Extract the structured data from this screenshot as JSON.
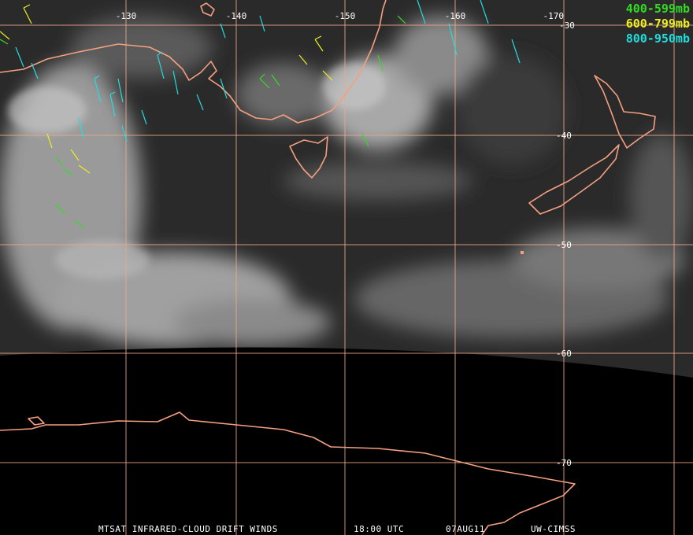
{
  "map": {
    "longitude_labels": [
      "-130",
      "-140",
      "-150",
      "-160",
      "-170"
    ],
    "latitude_labels": [
      "-30",
      "-40",
      "-50",
      "-60",
      "-70"
    ],
    "legend": [
      {
        "label": "400-599mb",
        "color": "#33dd22"
      },
      {
        "label": "600-799mb",
        "color": "#eeee22"
      },
      {
        "label": "800-950mb",
        "color": "#22dddd"
      }
    ],
    "footer": [
      "MTSAT INFRARED-CLOUD DRIFT WINDS",
      "18:00 UTC",
      "07AUG11",
      "UW-CIMSS"
    ]
  }
}
